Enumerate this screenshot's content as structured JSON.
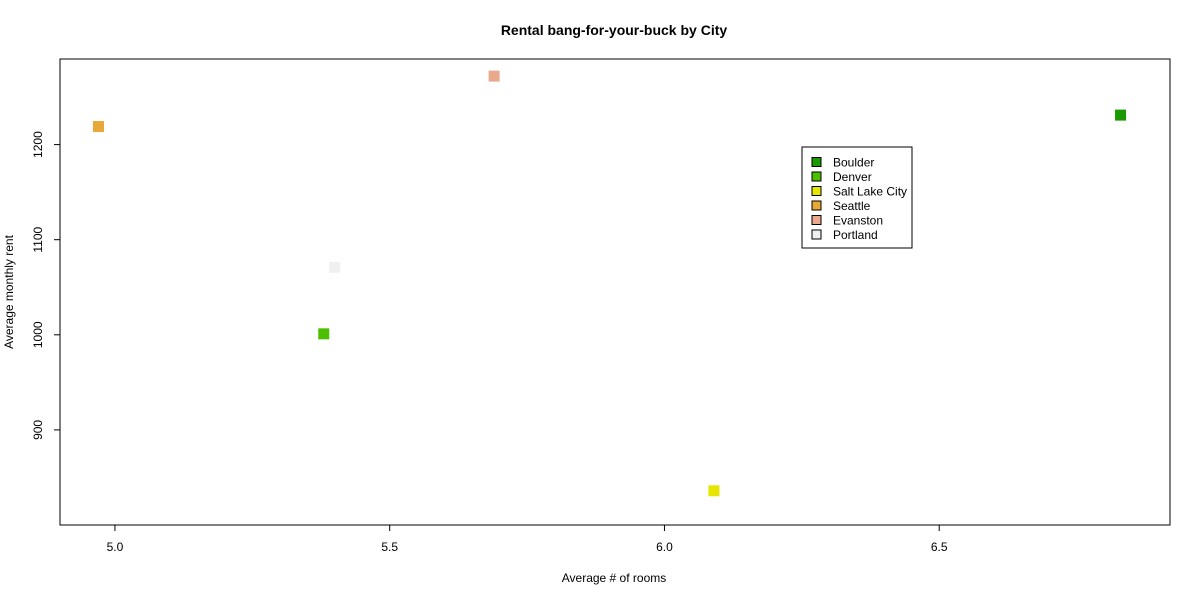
{
  "chart_data": {
    "type": "scatter",
    "title": "Rental bang-for-your-buck by City",
    "xlabel": "Average # of rooms",
    "ylabel": "Average monthly rent",
    "xlim": [
      4.9,
      6.92
    ],
    "ylim": [
      800,
      1290
    ],
    "xticks": [
      {
        "value": 5.0,
        "label": "5.0"
      },
      {
        "value": 5.5,
        "label": "5.5"
      },
      {
        "value": 6.0,
        "label": "6.0"
      },
      {
        "value": 6.5,
        "label": "6.5"
      }
    ],
    "yticks": [
      {
        "value": 900,
        "label": "900"
      },
      {
        "value": 1000,
        "label": "1000"
      },
      {
        "value": 1100,
        "label": "1100"
      },
      {
        "value": 1200,
        "label": "1200"
      }
    ],
    "series": [
      {
        "name": "Boulder",
        "color": "#1a9900",
        "x": 6.83,
        "y": 1231
      },
      {
        "name": "Denver",
        "color": "#4cbf00",
        "x": 5.38,
        "y": 1001
      },
      {
        "name": "Salt Lake City",
        "color": "#e6e600",
        "x": 6.09,
        "y": 836
      },
      {
        "name": "Seattle",
        "color": "#e8a838",
        "x": 4.97,
        "y": 1219
      },
      {
        "name": "Evanston",
        "color": "#eaa98c",
        "x": 5.69,
        "y": 1272
      },
      {
        "name": "Portland",
        "color": "#f0f0f0",
        "x": 5.4,
        "y": 1071
      }
    ],
    "legend_position": "top-right",
    "grid": false,
    "marker": "square"
  }
}
